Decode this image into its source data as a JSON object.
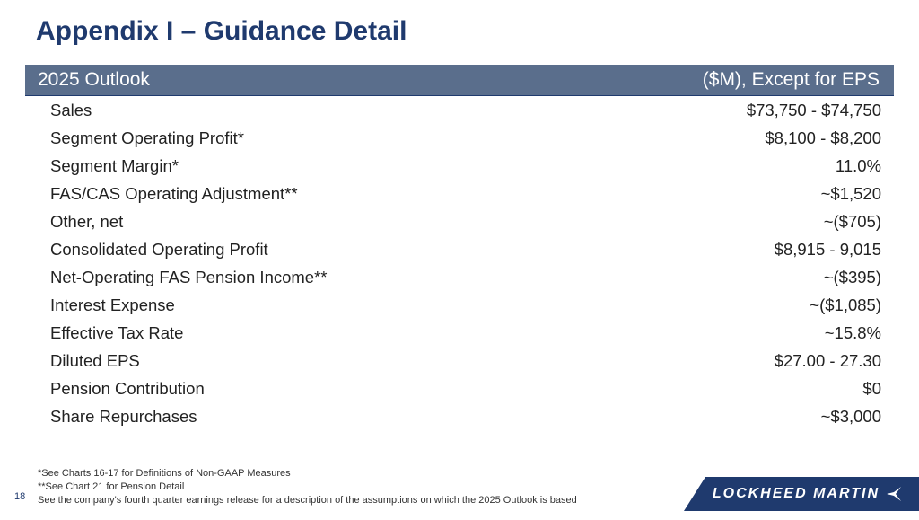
{
  "title": "Appendix I – Guidance Detail",
  "header": {
    "left": "2025 Outlook",
    "right": "($M), Except for EPS"
  },
  "rows": [
    {
      "label": "Sales",
      "value": "$73,750 - $74,750"
    },
    {
      "label": "Segment Operating Profit*",
      "value": "$8,100 - $8,200"
    },
    {
      "label": "Segment Margin*",
      "value": "11.0%"
    },
    {
      "label": "FAS/CAS Operating Adjustment**",
      "value": "~$1,520"
    },
    {
      "label": "Other, net",
      "value": "~($705)"
    },
    {
      "label": "Consolidated Operating Profit",
      "value": "$8,915 - 9,015"
    },
    {
      "label": "Net-Operating FAS Pension Income**",
      "value": "~($395)"
    },
    {
      "label": "Interest Expense",
      "value": "~($1,085)"
    },
    {
      "label": "Effective Tax Rate",
      "value": "~15.8%"
    },
    {
      "label": "Diluted EPS",
      "value": "$27.00 - 27.30"
    },
    {
      "label": "Pension Contribution",
      "value": "$0"
    },
    {
      "label": "Share Repurchases",
      "value": "~$3,000"
    }
  ],
  "footnotes": {
    "line1": "*See Charts 16-17 for Definitions of Non-GAAP Measures",
    "line2": "**See Chart 21 for Pension Detail",
    "line3": "See the company's fourth quarter earnings release for a description of the assumptions on which the 2025 Outlook is based"
  },
  "page_number": "18",
  "logo_text": "LOCKHEED MARTIN",
  "colors": {
    "title": "#1f3a6e",
    "header_bg": "#5a6e8c",
    "logo_bg": "#1f3a6e"
  }
}
